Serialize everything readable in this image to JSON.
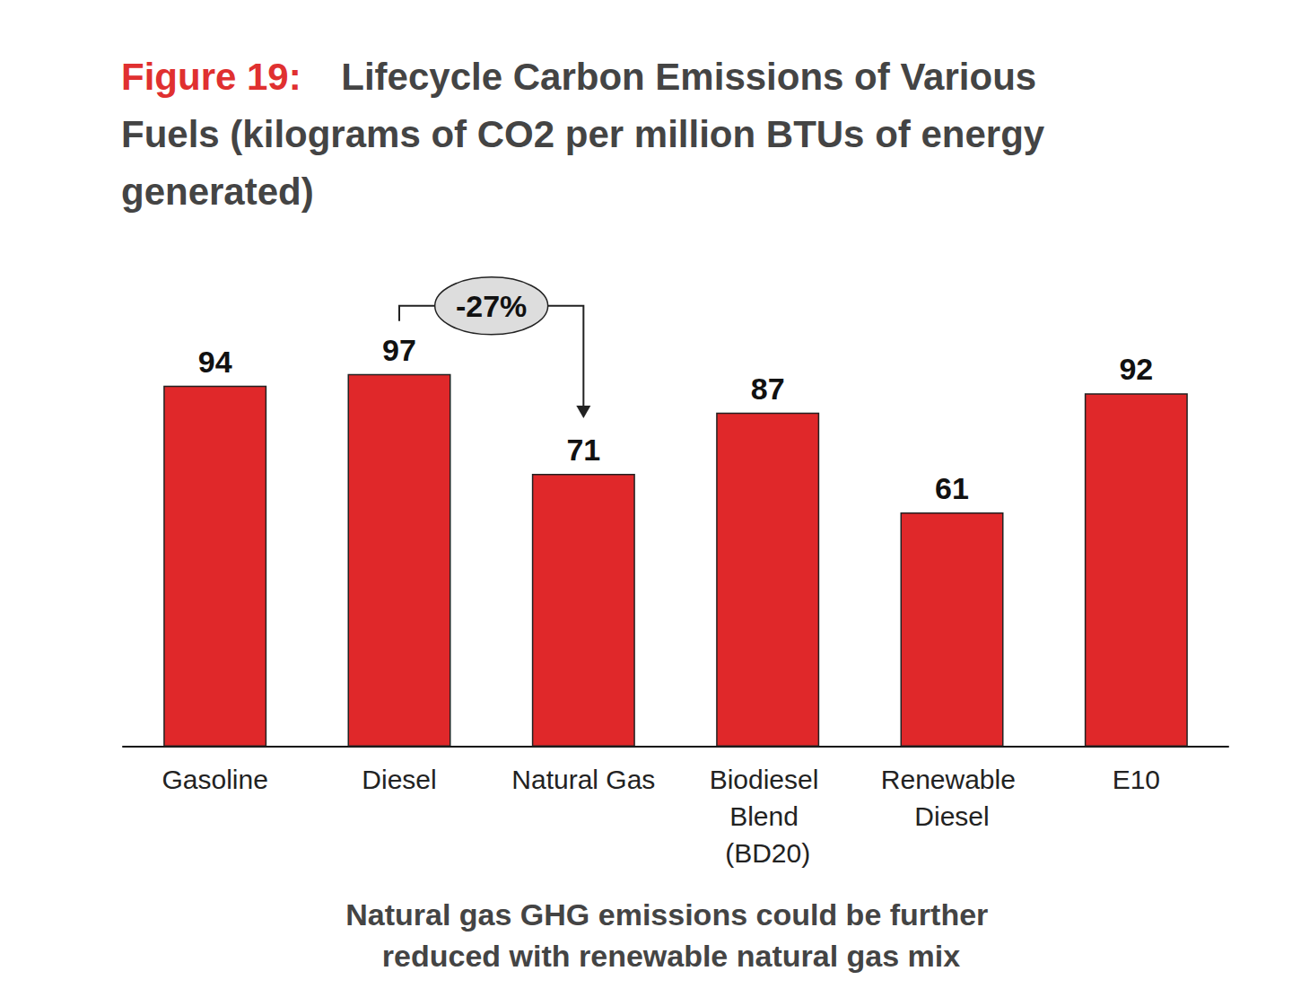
{
  "chart_data": {
    "type": "bar",
    "title": "Figure 19: Lifecycle Carbon Emissions of Various Fuels (kilograms of CO2 per million BTUs of energy generated)",
    "categories": [
      "Gasoline",
      "Diesel",
      "Natural Gas",
      "Biodiesel Blend (BD20)",
      "Renewable Diesel",
      "E10"
    ],
    "values": [
      94,
      97,
      71,
      87,
      61,
      92
    ],
    "color": "#e0282a",
    "ylim": [
      0,
      100
    ],
    "grid": false,
    "data_labels": true,
    "tick_labels": "x",
    "annotations": [
      {
        "text": "-27%",
        "from": "Diesel",
        "to": "Natural Gas"
      }
    ],
    "note": "Natural gas GHG emissions could be further reduced with renewable natural gas mix"
  }
}
